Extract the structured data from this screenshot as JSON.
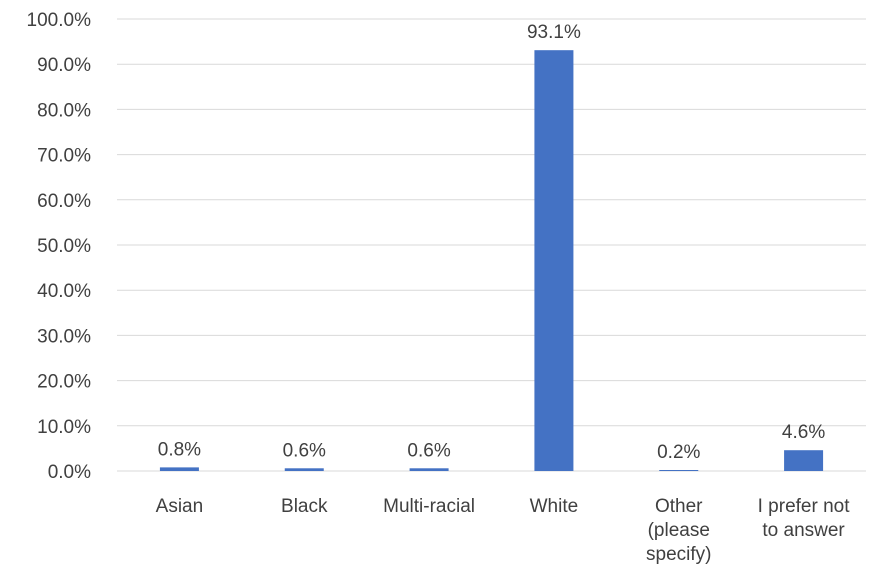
{
  "chart_data": {
    "type": "bar",
    "title": "",
    "xlabel": "",
    "ylabel": "",
    "categories": [
      [
        "Asian"
      ],
      [
        "Black"
      ],
      [
        "Multi-racial"
      ],
      [
        "White"
      ],
      [
        "Other",
        "(please",
        "specify)"
      ],
      [
        "I prefer not",
        "to answer"
      ]
    ],
    "values": [
      0.8,
      0.6,
      0.6,
      93.1,
      0.2,
      4.6
    ],
    "data_labels": [
      "0.8%",
      "0.6%",
      "0.6%",
      "93.1%",
      "0.2%",
      "4.6%"
    ],
    "ylim": [
      0,
      100
    ],
    "yticks": [
      0,
      10,
      20,
      30,
      40,
      50,
      60,
      70,
      80,
      90,
      100
    ],
    "ytick_labels": [
      "0.0%",
      "10.0%",
      "20.0%",
      "30.0%",
      "40.0%",
      "50.0%",
      "60.0%",
      "70.0%",
      "80.0%",
      "90.0%",
      "100.0%"
    ],
    "grid": true,
    "legend": "none",
    "bar_color": "#4472c4"
  }
}
